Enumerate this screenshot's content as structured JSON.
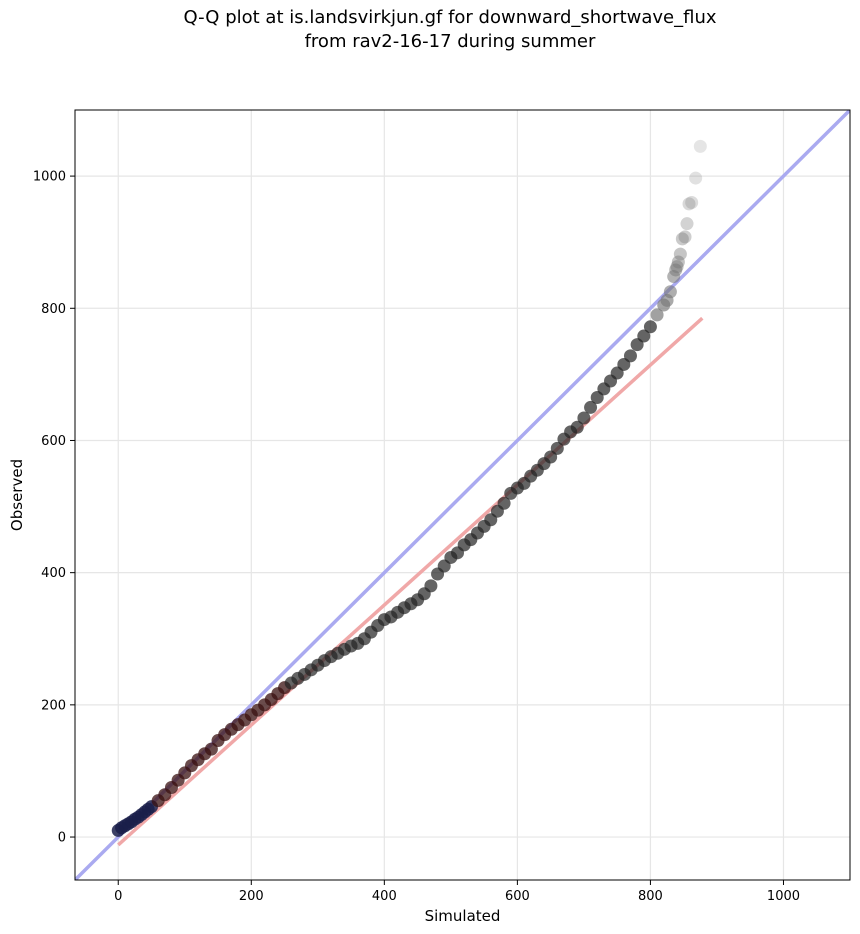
{
  "chart_data": {
    "type": "scatter",
    "title": "Q-Q plot at is.landsvirkjun.gf for downward_shortwave_flux",
    "subtitle": "from rav2-16-17 during summer",
    "xlabel": "Simulated",
    "ylabel": "Observed",
    "xlim": [
      -65,
      1100
    ],
    "ylim": [
      -65,
      1100
    ],
    "xticks": [
      0,
      200,
      400,
      600,
      800,
      1000
    ],
    "yticks": [
      0,
      200,
      400,
      600,
      800,
      1000
    ],
    "grid": true,
    "reference_lines": [
      {
        "kind": "identity",
        "color": "#aaaaf0",
        "x": [
          -65,
          1100
        ],
        "y": [
          -65,
          1100
        ]
      },
      {
        "kind": "fit",
        "color": "#f0a8a8",
        "x": [
          0,
          878
        ],
        "y": [
          -12,
          785
        ]
      }
    ],
    "points": {
      "x": [
        0,
        5,
        10,
        15,
        20,
        25,
        30,
        35,
        40,
        45,
        50,
        60,
        70,
        80,
        90,
        100,
        110,
        120,
        130,
        140,
        150,
        160,
        170,
        180,
        190,
        200,
        210,
        220,
        230,
        240,
        250,
        260,
        270,
        280,
        290,
        300,
        310,
        320,
        330,
        340,
        350,
        360,
        370,
        380,
        390,
        400,
        410,
        420,
        430,
        440,
        450,
        460,
        470,
        480,
        490,
        500,
        510,
        520,
        530,
        540,
        550,
        560,
        570,
        580,
        590,
        600,
        610,
        620,
        630,
        640,
        650,
        660,
        670,
        680,
        690,
        700,
        710,
        720,
        730,
        740,
        750,
        760,
        770,
        780,
        790,
        800,
        810,
        820,
        825,
        830,
        835,
        838,
        840,
        842,
        845,
        848,
        852,
        855,
        858,
        862,
        868,
        875
      ],
      "y": [
        10,
        14,
        17,
        20,
        23,
        27,
        30,
        34,
        38,
        42,
        46,
        55,
        64,
        75,
        86,
        97,
        108,
        117,
        126,
        133,
        146,
        155,
        163,
        170,
        177,
        185,
        192,
        200,
        208,
        217,
        226,
        233,
        240,
        246,
        253,
        260,
        267,
        273,
        278,
        284,
        289,
        293,
        300,
        310,
        320,
        329,
        333,
        340,
        347,
        353,
        359,
        368,
        380,
        398,
        410,
        423,
        430,
        442,
        450,
        460,
        470,
        480,
        493,
        505,
        520,
        528,
        535,
        546,
        555,
        565,
        575,
        588,
        602,
        613,
        620,
        634,
        650,
        665,
        678,
        690,
        702,
        715,
        728,
        745,
        758,
        772,
        790,
        805,
        812,
        825,
        848,
        858,
        863,
        870,
        882,
        905,
        908,
        928,
        958,
        960,
        997,
        1045
      ]
    }
  }
}
